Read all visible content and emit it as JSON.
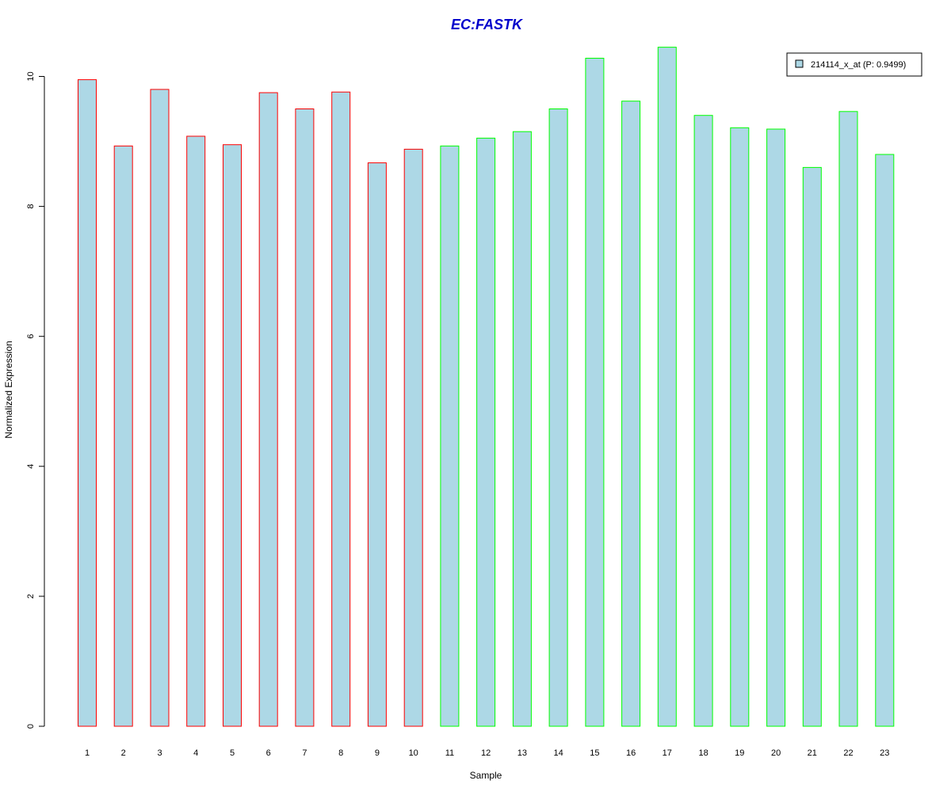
{
  "colors": {
    "bar_fill": "#add8e6",
    "title": "#0000cc",
    "group1_border": "#ff0000",
    "group2_border": "#00ff00"
  },
  "chart_data": {
    "type": "bar",
    "title": "EC:FASTK",
    "xlabel": "Sample",
    "ylabel": "Normalized Expression",
    "ylim": [
      0,
      10.5
    ],
    "y_ticks": [
      0,
      2,
      4,
      6,
      8,
      10
    ],
    "grid": false,
    "legend_position": "top-right",
    "categories": [
      "1",
      "2",
      "3",
      "4",
      "5",
      "6",
      "7",
      "8",
      "9",
      "10",
      "11",
      "12",
      "13",
      "14",
      "15",
      "16",
      "17",
      "18",
      "19",
      "20",
      "21",
      "22",
      "23"
    ],
    "series": [
      {
        "name": "214114_x_at (P: 0.9499)",
        "values": [
          9.95,
          8.93,
          9.8,
          9.08,
          8.95,
          9.75,
          9.5,
          9.76,
          8.67,
          8.88,
          8.93,
          9.05,
          9.15,
          9.5,
          10.28,
          9.62,
          10.45,
          9.4,
          9.21,
          9.19,
          8.6,
          9.46,
          8.8
        ]
      }
    ],
    "groups": [
      "group1",
      "group1",
      "group1",
      "group1",
      "group1",
      "group1",
      "group1",
      "group1",
      "group1",
      "group1",
      "group2",
      "group2",
      "group2",
      "group2",
      "group2",
      "group2",
      "group2",
      "group2",
      "group2",
      "group2",
      "group2",
      "group2",
      "group2"
    ]
  }
}
